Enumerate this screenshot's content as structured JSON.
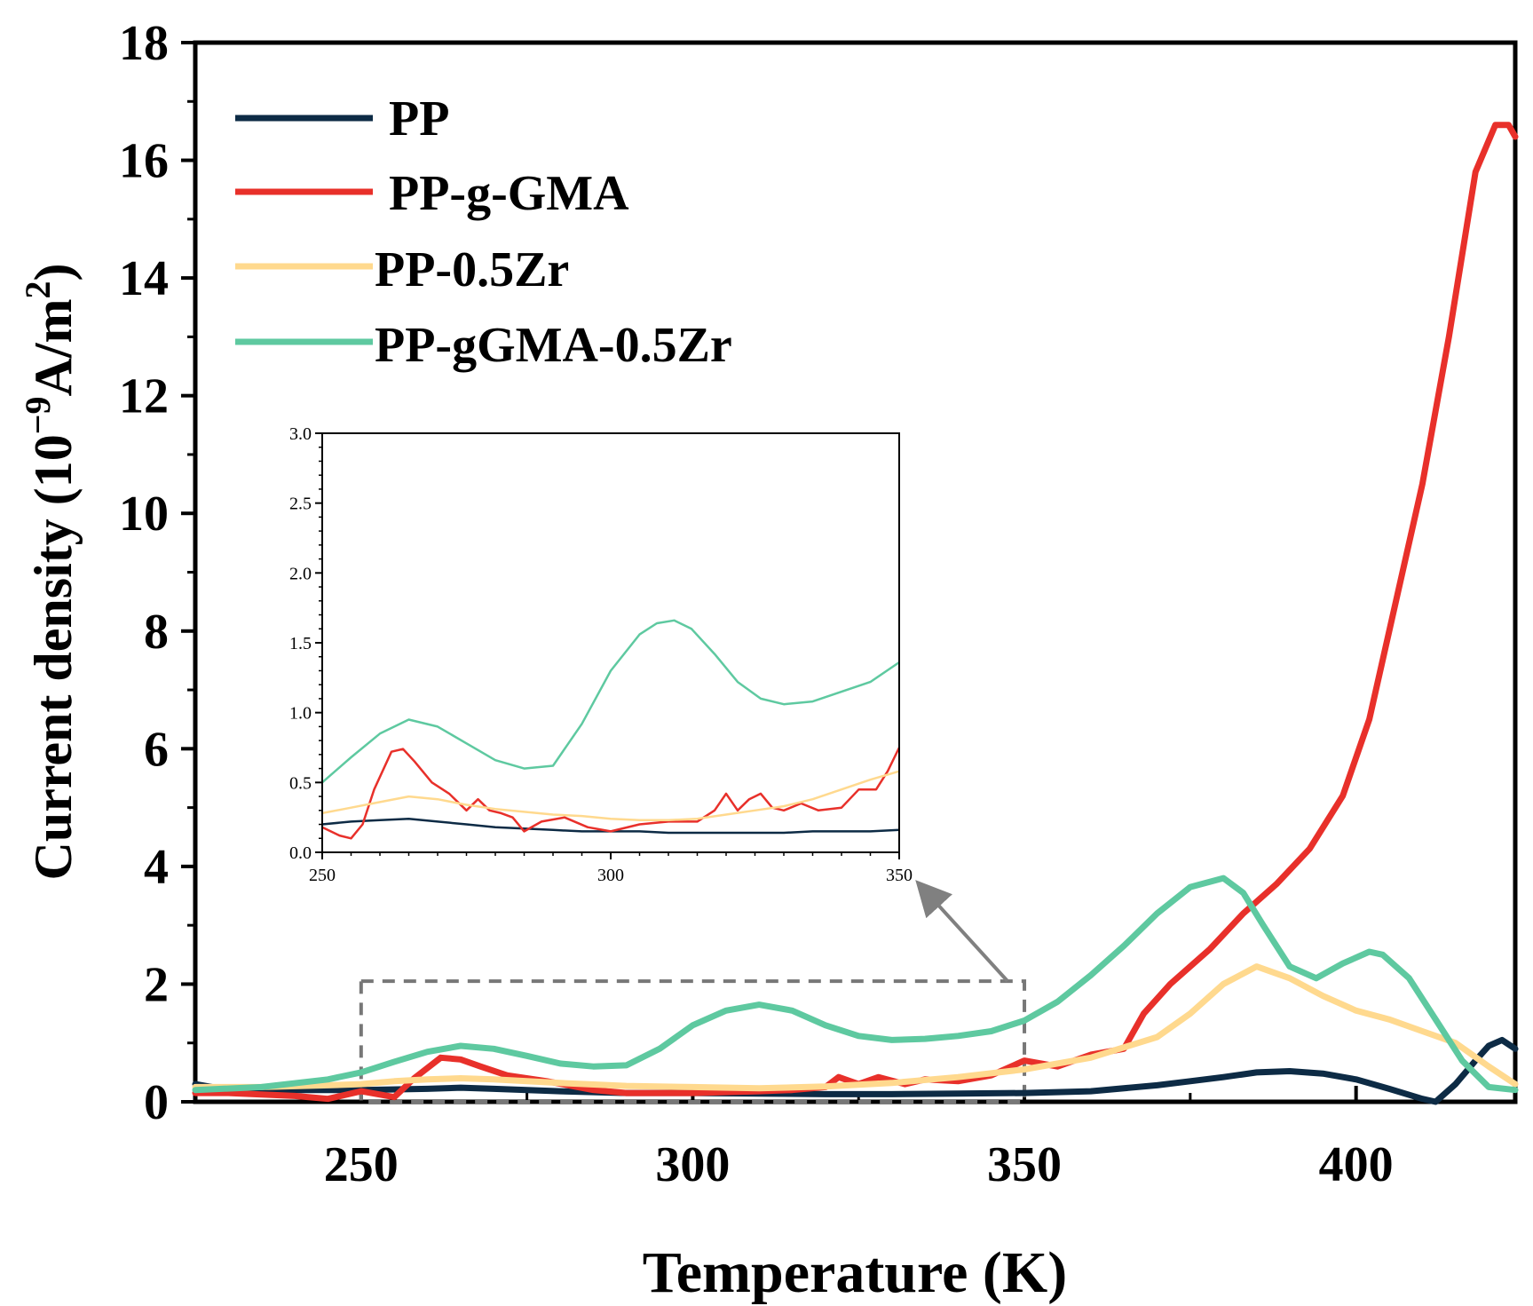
{
  "chart_data": [
    {
      "type": "line",
      "xlabel": "Temperature (K)",
      "ylabel_main": "Current density (10",
      "ylabel_sup1": "−9",
      "ylabel_mid": "A/m",
      "ylabel_sup2": "2",
      "ylabel_end": ")",
      "xlim": [
        225,
        424
      ],
      "ylim": [
        0,
        18
      ],
      "xticks": [
        250,
        300,
        350,
        400
      ],
      "xtick_labels": [
        "250",
        "300",
        "350",
        "400"
      ],
      "yticks": [
        0,
        2,
        4,
        6,
        8,
        10,
        12,
        14,
        16,
        18
      ],
      "ytick_labels": [
        "0",
        "2",
        "4",
        "6",
        "8",
        "10",
        "12",
        "14",
        "16",
        "18"
      ],
      "legend_position": "top-left",
      "series": [
        {
          "name": "PP",
          "color": "#0d2b45",
          "x": [
            225,
            230,
            240,
            250,
            260,
            265,
            270,
            280,
            290,
            300,
            310,
            320,
            330,
            340,
            350,
            360,
            370,
            375,
            380,
            385,
            390,
            395,
            400,
            405,
            410,
            412,
            415,
            418,
            420,
            422,
            424
          ],
          "y": [
            0.3,
            0.2,
            0.2,
            0.2,
            0.22,
            0.24,
            0.22,
            0.18,
            0.15,
            0.15,
            0.14,
            0.13,
            0.13,
            0.14,
            0.15,
            0.18,
            0.28,
            0.35,
            0.42,
            0.5,
            0.52,
            0.48,
            0.38,
            0.22,
            0.05,
            0.0,
            0.3,
            0.7,
            0.95,
            1.05,
            0.9
          ]
        },
        {
          "name": "PP-g-GMA",
          "color": "#e8302a",
          "x": [
            225,
            230,
            240,
            245,
            250,
            255,
            258,
            262,
            265,
            268,
            272,
            278,
            285,
            290,
            300,
            310,
            315,
            320,
            322,
            325,
            328,
            332,
            335,
            340,
            345,
            350,
            355,
            360,
            365,
            368,
            372,
            378,
            383,
            388,
            393,
            398,
            402,
            406,
            410,
            414,
            418,
            421,
            423,
            424
          ],
          "y": [
            0.15,
            0.15,
            0.1,
            0.05,
            0.18,
            0.08,
            0.4,
            0.75,
            0.72,
            0.6,
            0.45,
            0.35,
            0.2,
            0.15,
            0.15,
            0.18,
            0.2,
            0.25,
            0.42,
            0.3,
            0.42,
            0.3,
            0.38,
            0.35,
            0.45,
            0.7,
            0.6,
            0.8,
            0.9,
            1.5,
            2.0,
            2.6,
            3.2,
            3.7,
            4.3,
            5.2,
            6.5,
            8.5,
            10.5,
            13.0,
            15.8,
            16.6,
            16.6,
            16.4
          ]
        },
        {
          "name": "PP-0.5Zr",
          "color": "#ffd98e",
          "x": [
            225,
            235,
            245,
            250,
            255,
            260,
            265,
            270,
            280,
            290,
            300,
            310,
            320,
            330,
            340,
            350,
            360,
            370,
            375,
            380,
            385,
            390,
            395,
            400,
            405,
            410,
            415,
            420,
            424
          ],
          "y": [
            0.25,
            0.25,
            0.28,
            0.3,
            0.35,
            0.38,
            0.4,
            0.38,
            0.32,
            0.27,
            0.25,
            0.23,
            0.26,
            0.32,
            0.42,
            0.55,
            0.75,
            1.1,
            1.5,
            2.0,
            2.3,
            2.1,
            1.8,
            1.55,
            1.4,
            1.2,
            1.0,
            0.6,
            0.3
          ]
        },
        {
          "name": "PP-gGMA-0.5Zr",
          "color": "#5ec9a0",
          "x": [
            225,
            235,
            245,
            250,
            255,
            260,
            265,
            270,
            275,
            280,
            285,
            290,
            295,
            300,
            305,
            310,
            315,
            320,
            325,
            330,
            335,
            340,
            345,
            350,
            355,
            360,
            365,
            370,
            375,
            380,
            383,
            386,
            390,
            394,
            398,
            402,
            404,
            408,
            412,
            416,
            420,
            424
          ],
          "y": [
            0.2,
            0.25,
            0.38,
            0.5,
            0.68,
            0.85,
            0.95,
            0.9,
            0.78,
            0.65,
            0.6,
            0.62,
            0.9,
            1.3,
            1.55,
            1.65,
            1.55,
            1.3,
            1.12,
            1.05,
            1.07,
            1.12,
            1.2,
            1.38,
            1.7,
            2.15,
            2.65,
            3.2,
            3.65,
            3.8,
            3.55,
            3.0,
            2.3,
            2.1,
            2.35,
            2.55,
            2.5,
            2.1,
            1.4,
            0.7,
            0.25,
            0.2
          ]
        }
      ]
    },
    {
      "type": "line",
      "inset": true,
      "xlim": [
        250,
        350
      ],
      "ylim": [
        0,
        3.0
      ],
      "xticks": [
        250,
        300,
        350
      ],
      "xtick_labels": [
        "250",
        "300",
        "350"
      ],
      "yticks": [
        0,
        0.5,
        1.0,
        1.5,
        2.0,
        2.5,
        3.0
      ],
      "ytick_labels": [
        "0.0",
        "0.5",
        "1.0",
        "1.5",
        "2.0",
        "2.5",
        "3.0"
      ],
      "series": [
        {
          "name": "PP",
          "color": "#0d2b45",
          "x": [
            250,
            255,
            260,
            265,
            270,
            275,
            280,
            285,
            290,
            295,
            300,
            305,
            310,
            315,
            320,
            325,
            330,
            335,
            340,
            345,
            350
          ],
          "y": [
            0.2,
            0.22,
            0.23,
            0.24,
            0.22,
            0.2,
            0.18,
            0.17,
            0.16,
            0.15,
            0.15,
            0.15,
            0.14,
            0.14,
            0.14,
            0.14,
            0.14,
            0.15,
            0.15,
            0.15,
            0.16
          ]
        },
        {
          "name": "PP-g-GMA",
          "color": "#e8302a",
          "x": [
            250,
            253,
            255,
            257,
            259,
            262,
            264,
            266,
            269,
            272,
            275,
            277,
            279,
            281,
            283,
            285,
            288,
            292,
            296,
            300,
            305,
            310,
            315,
            318,
            320,
            322,
            324,
            326,
            328,
            330,
            333,
            336,
            340,
            343,
            346,
            348,
            350
          ],
          "y": [
            0.18,
            0.12,
            0.1,
            0.2,
            0.45,
            0.72,
            0.74,
            0.65,
            0.5,
            0.42,
            0.3,
            0.38,
            0.3,
            0.28,
            0.25,
            0.15,
            0.22,
            0.25,
            0.18,
            0.15,
            0.2,
            0.22,
            0.22,
            0.3,
            0.42,
            0.3,
            0.38,
            0.42,
            0.32,
            0.3,
            0.35,
            0.3,
            0.32,
            0.45,
            0.45,
            0.58,
            0.75
          ]
        },
        {
          "name": "PP-0.5Zr",
          "color": "#ffd98e",
          "x": [
            250,
            255,
            260,
            265,
            270,
            275,
            280,
            285,
            290,
            295,
            300,
            305,
            310,
            315,
            320,
            325,
            330,
            335,
            340,
            345,
            350
          ],
          "y": [
            0.28,
            0.32,
            0.36,
            0.4,
            0.38,
            0.34,
            0.31,
            0.29,
            0.27,
            0.26,
            0.24,
            0.23,
            0.23,
            0.24,
            0.27,
            0.3,
            0.33,
            0.38,
            0.45,
            0.52,
            0.58
          ]
        },
        {
          "name": "PP-gGMA-0.5Zr",
          "color": "#5ec9a0",
          "x": [
            250,
            255,
            260,
            265,
            270,
            275,
            280,
            285,
            290,
            295,
            300,
            305,
            308,
            311,
            314,
            318,
            322,
            326,
            330,
            335,
            340,
            345,
            350
          ],
          "y": [
            0.5,
            0.68,
            0.85,
            0.95,
            0.9,
            0.78,
            0.66,
            0.6,
            0.62,
            0.92,
            1.3,
            1.56,
            1.64,
            1.66,
            1.6,
            1.42,
            1.22,
            1.1,
            1.06,
            1.08,
            1.15,
            1.22,
            1.36
          ]
        }
      ]
    }
  ]
}
